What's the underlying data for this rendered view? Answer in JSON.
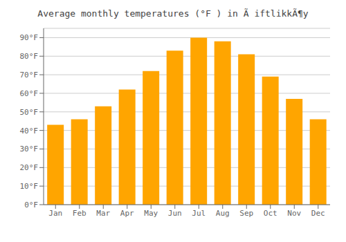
{
  "chart_data": {
    "type": "bar",
    "title": "Average monthly temperatures (°F ) in Ã iftlikkÃ¶y",
    "categories": [
      "Jan",
      "Feb",
      "Mar",
      "Apr",
      "May",
      "Jun",
      "Jul",
      "Aug",
      "Sep",
      "Oct",
      "Nov",
      "Dec"
    ],
    "values": [
      43,
      46,
      53,
      62,
      72,
      83,
      90,
      88,
      81,
      69,
      57,
      46
    ],
    "color": "#FFA500",
    "ylim": [
      0,
      95
    ],
    "yticks": [
      {
        "value": 0,
        "label": "0°F"
      },
      {
        "value": 10,
        "label": "10°F"
      },
      {
        "value": 20,
        "label": "20°F"
      },
      {
        "value": 30,
        "label": "30°F"
      },
      {
        "value": 40,
        "label": "40°F"
      },
      {
        "value": 50,
        "label": "50°F"
      },
      {
        "value": 60,
        "label": "60°F"
      },
      {
        "value": 70,
        "label": "70°F"
      },
      {
        "value": 80,
        "label": "80°F"
      },
      {
        "value": 90,
        "label": "90°F"
      }
    ],
    "grid": true
  }
}
